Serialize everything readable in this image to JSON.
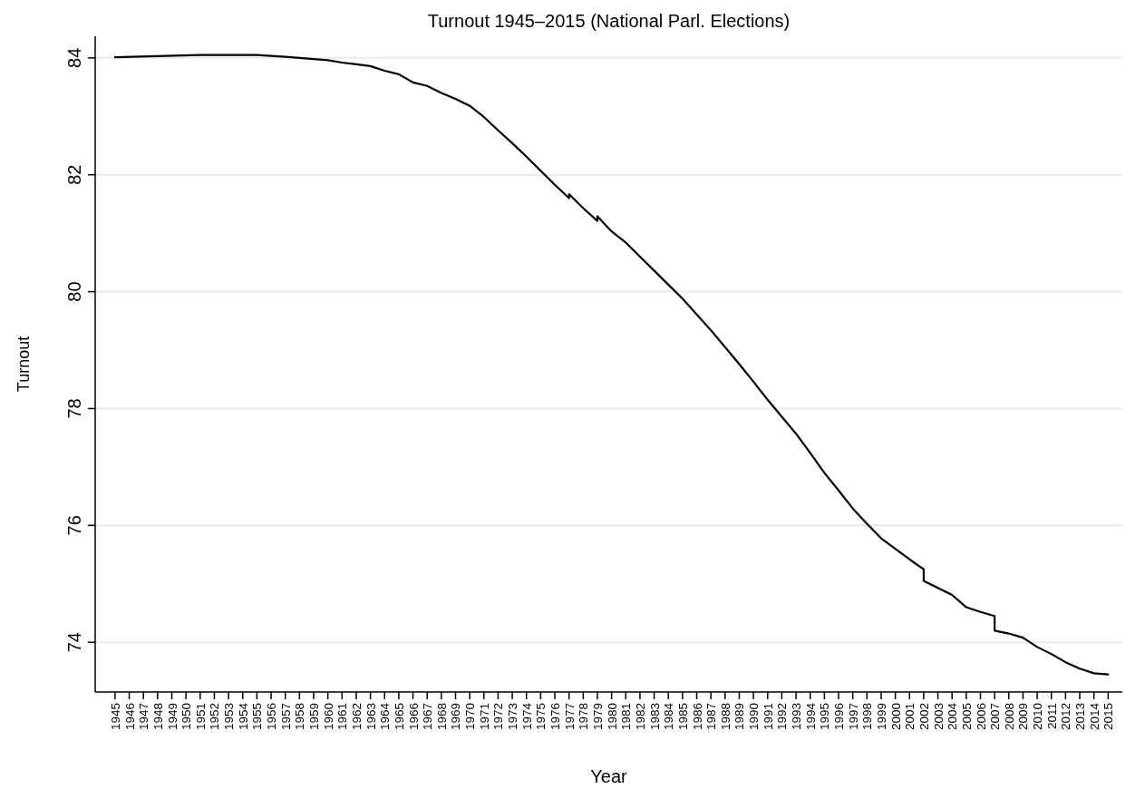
{
  "chart_data": {
    "type": "line",
    "title": "Turnout 1945–2015 (National Parl. Elections)",
    "xlabel": "Year",
    "ylabel": "Turnout",
    "x": [
      1945,
      1948,
      1951,
      1955,
      1957,
      1958,
      1960,
      1961,
      1962,
      1963,
      1964,
      1965,
      1966,
      1967,
      1968,
      1969,
      1970,
      1971,
      1972,
      1973,
      1974,
      1975,
      1976,
      1977,
      1977,
      1978,
      1979,
      1979,
      1980,
      1981,
      1982,
      1983,
      1984,
      1985,
      1986,
      1987,
      1988,
      1989,
      1990,
      1991,
      1992,
      1993,
      1994,
      1995,
      1996,
      1997,
      1998,
      1999,
      2000,
      2001,
      2002,
      2002,
      2003,
      2004,
      2005,
      2006,
      2007,
      2007,
      2008,
      2009,
      2010,
      2011,
      2012,
      2013,
      2014,
      2015
    ],
    "series": [
      {
        "color": "#000000",
        "values": [
          84.01,
          84.03,
          84.05,
          84.05,
          84.02,
          84.0,
          83.96,
          83.92,
          83.89,
          83.86,
          83.78,
          83.72,
          83.58,
          83.52,
          83.4,
          83.3,
          83.18,
          82.99,
          82.76,
          82.54,
          82.31,
          82.07,
          81.83,
          81.6,
          81.67,
          81.43,
          81.21,
          81.29,
          81.03,
          80.84,
          80.6,
          80.36,
          80.12,
          79.88,
          79.61,
          79.34,
          79.05,
          78.76,
          78.46,
          78.15,
          77.86,
          77.57,
          77.24,
          76.9,
          76.6,
          76.29,
          76.03,
          75.78,
          75.6,
          75.42,
          75.25,
          75.05,
          74.93,
          74.81,
          74.6,
          74.52,
          74.45,
          74.2,
          74.15,
          74.08,
          73.92,
          73.8,
          73.66,
          73.55,
          73.47,
          73.45
        ]
      }
    ],
    "xlim": [
      1943.6,
      2016
    ],
    "xticks": [
      1945,
      1946,
      1947,
      1948,
      1949,
      1950,
      1951,
      1952,
      1953,
      1954,
      1955,
      1956,
      1957,
      1958,
      1959,
      1960,
      1961,
      1962,
      1963,
      1964,
      1965,
      1966,
      1967,
      1968,
      1969,
      1970,
      1971,
      1972,
      1973,
      1974,
      1975,
      1976,
      1977,
      1978,
      1979,
      1980,
      1981,
      1982,
      1983,
      1984,
      1985,
      1986,
      1987,
      1988,
      1989,
      1990,
      1991,
      1992,
      1993,
      1994,
      1995,
      1996,
      1997,
      1998,
      1999,
      2000,
      2001,
      2002,
      2003,
      2004,
      2005,
      2006,
      2007,
      2008,
      2009,
      2010,
      2011,
      2012,
      2013,
      2014,
      2015
    ],
    "ylim": [
      73.15,
      84.37
    ],
    "yticks": [
      74,
      76,
      78,
      80,
      82,
      84
    ],
    "grid": "y",
    "marker": "none",
    "line_style": "solid"
  }
}
